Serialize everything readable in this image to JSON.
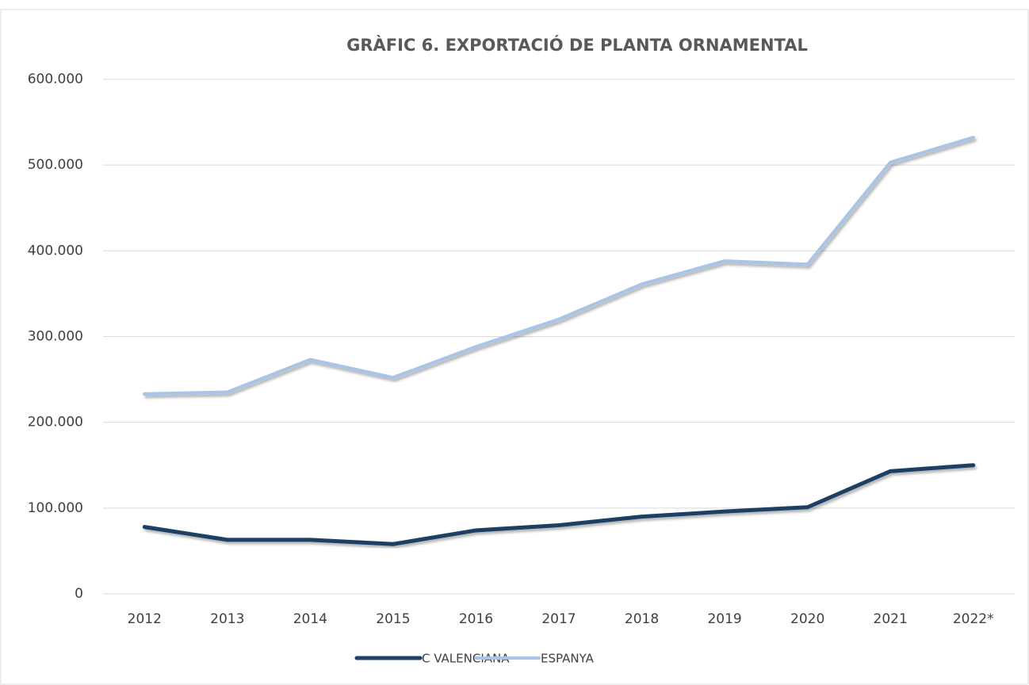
{
  "chart_data": {
    "type": "line",
    "title": "GRÀFIC 6. EXPORTACIÓ DE PLANTA ORNAMENTAL",
    "categories": [
      "2012",
      "2013",
      "2014",
      "2015",
      "2016",
      "2017",
      "2018",
      "2019",
      "2020",
      "2021",
      "2022*"
    ],
    "series": [
      {
        "name": "C VALENCIANA",
        "color": "#1f3f63",
        "values": [
          78000,
          63000,
          63000,
          58000,
          74000,
          80000,
          90000,
          96000,
          101000,
          143000,
          150000
        ]
      },
      {
        "name": "ESPANYA",
        "color": "#a9c4e4",
        "values": [
          233000,
          235000,
          273000,
          252000,
          288000,
          320000,
          361000,
          388000,
          384000,
          503000,
          532000
        ]
      }
    ],
    "ylim": [
      0,
      600000
    ],
    "yticks": [
      0,
      {
        "value": 100000,
        "label": "100.000"
      },
      {
        "value": 200000,
        "label": "200.000"
      },
      {
        "value": 300000,
        "label": "300.000"
      },
      {
        "value": 400000,
        "label": "400.000"
      },
      {
        "value": 500000,
        "label": "500.000"
      },
      {
        "value": 600000,
        "label": "600.000"
      }
    ],
    "grid": true,
    "legend": "bottom"
  }
}
